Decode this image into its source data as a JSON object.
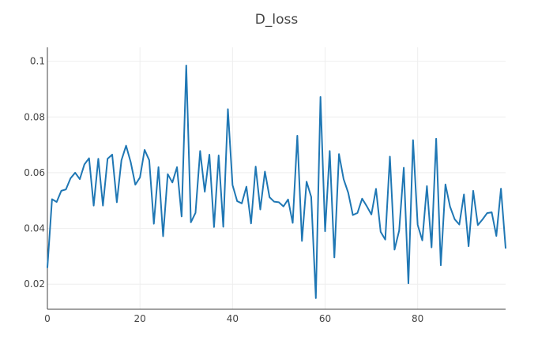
{
  "chart_data": {
    "type": "line",
    "title": "D_loss",
    "xlabel": "",
    "ylabel": "",
    "xlim": [
      0,
      99
    ],
    "ylim": [
      0.011,
      0.105
    ],
    "x_ticks": [
      0,
      20,
      40,
      60,
      80
    ],
    "x_tick_labels": [
      "0",
      "20",
      "40",
      "60",
      "80"
    ],
    "y_ticks": [
      0.02,
      0.04,
      0.06,
      0.08,
      0.1
    ],
    "y_tick_labels": [
      "0.02",
      "0.04",
      "0.06",
      "0.08",
      "0.1"
    ],
    "grid": true,
    "series": [
      {
        "color": "#1f77b4",
        "x": [
          0,
          1,
          2,
          3,
          4,
          5,
          6,
          7,
          8,
          9,
          10,
          11,
          12,
          13,
          14,
          15,
          16,
          17,
          18,
          19,
          20,
          21,
          22,
          23,
          24,
          25,
          26,
          27,
          28,
          29,
          30,
          31,
          32,
          33,
          34,
          35,
          36,
          37,
          38,
          39,
          40,
          41,
          42,
          43,
          44,
          45,
          46,
          47,
          48,
          49,
          50,
          51,
          52,
          53,
          54,
          55,
          56,
          57,
          58,
          59,
          60,
          61,
          62,
          63,
          64,
          65,
          66,
          67,
          68,
          69,
          70,
          71,
          72,
          73,
          74,
          75,
          76,
          77,
          78,
          79,
          80,
          81,
          82,
          83,
          84,
          85,
          86,
          87,
          88,
          89,
          90,
          91,
          92,
          93,
          94,
          95,
          96,
          97,
          98,
          99
        ],
        "values": [
          0.026,
          0.0505,
          0.0495,
          0.0535,
          0.054,
          0.058,
          0.06,
          0.0577,
          0.063,
          0.0652,
          0.0482,
          0.065,
          0.0482,
          0.065,
          0.0665,
          0.0494,
          0.0645,
          0.0697,
          0.0638,
          0.0557,
          0.0583,
          0.0682,
          0.0645,
          0.0417,
          0.062,
          0.0372,
          0.0595,
          0.0565,
          0.062,
          0.0443,
          0.0985,
          0.0422,
          0.0456,
          0.0678,
          0.0532,
          0.0665,
          0.0405,
          0.0662,
          0.0406,
          0.0828,
          0.0556,
          0.0498,
          0.049,
          0.055,
          0.0418,
          0.0622,
          0.0468,
          0.0604,
          0.0512,
          0.0496,
          0.0494,
          0.0479,
          0.0504,
          0.042,
          0.0733,
          0.0355,
          0.0568,
          0.0513,
          0.015,
          0.0872,
          0.039,
          0.0678,
          0.0296,
          0.0667,
          0.0577,
          0.0528,
          0.0448,
          0.0456,
          0.0507,
          0.048,
          0.045,
          0.0542,
          0.0388,
          0.036,
          0.0658,
          0.0324,
          0.0392,
          0.0618,
          0.0203,
          0.0717,
          0.0413,
          0.0357,
          0.0552,
          0.0332,
          0.0722,
          0.0268,
          0.0558,
          0.0478,
          0.0433,
          0.0414,
          0.0522,
          0.0336,
          0.0535,
          0.0412,
          0.0432,
          0.0455,
          0.0458,
          0.0373,
          0.0543,
          0.033
        ]
      }
    ]
  }
}
